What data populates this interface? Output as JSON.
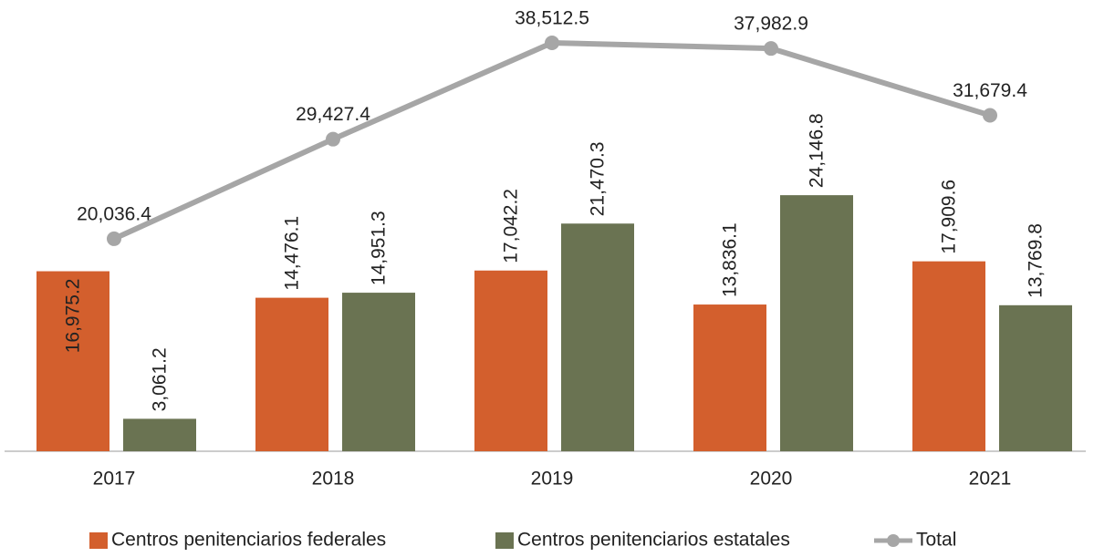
{
  "chart_data": {
    "type": "bar",
    "categories": [
      "2017",
      "2018",
      "2019",
      "2020",
      "2021"
    ],
    "series": [
      {
        "name": "Centros penitenciarios federales",
        "color": "#d35f2d",
        "type": "bar",
        "values": [
          16975.2,
          14476.1,
          17042.2,
          13836.1,
          17909.6
        ],
        "value_labels": [
          "16,975.2",
          "14,476.1",
          "17,042.2",
          "13,836.1",
          "17,909.6"
        ]
      },
      {
        "name": "Centros penitenciarios estatales",
        "color": "#6a7352",
        "type": "bar",
        "values": [
          3061.2,
          14951.3,
          21470.3,
          24146.8,
          13769.8
        ],
        "value_labels": [
          "3,061.2",
          "14,951.3",
          "21,470.3",
          "24,146.8",
          "13,769.8"
        ]
      },
      {
        "name": "Total",
        "color": "#a6a6a6",
        "type": "line",
        "values": [
          20036.4,
          29427.4,
          38512.5,
          37982.9,
          31679.4
        ],
        "value_labels": [
          "20,036.4",
          "29,427.4",
          "38,512.5",
          "37,982.9",
          "31,679.4"
        ]
      }
    ]
  }
}
